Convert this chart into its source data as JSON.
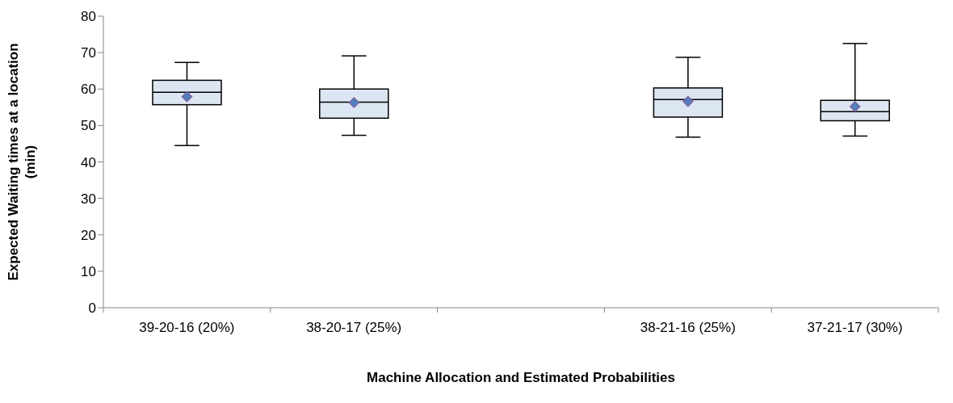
{
  "chart_data": {
    "type": "box",
    "xlabel": "Machine Allocation and Estimated Probabilities",
    "ylabel": "Expected Waiting times at a location (min)",
    "categories": [
      "39-20-16 (20%)",
      "38-20-17 (25%)",
      null,
      "38-21-16 (25%)",
      "37-21-17 (30%)"
    ],
    "color": "#dce6f2",
    "marker": "diamond",
    "boxes": [
      {
        "low": 44.5,
        "q1": 55.7,
        "median": 59.1,
        "q3": 62.4,
        "high": 67.3,
        "mean": 57.9
      },
      {
        "low": 47.3,
        "q1": 52.0,
        "median": 56.4,
        "q3": 60.0,
        "high": 69.1,
        "mean": 56.3
      },
      null,
      {
        "low": 46.8,
        "q1": 52.3,
        "median": 57.1,
        "q3": 60.3,
        "high": 68.7,
        "mean": 56.6
      },
      {
        "low": 47.1,
        "q1": 51.3,
        "median": 53.8,
        "q3": 56.9,
        "high": 72.5,
        "mean": 55.2
      }
    ],
    "ylim": [
      0,
      80
    ],
    "yticks": [
      0,
      10,
      20,
      30,
      40,
      50,
      60,
      70,
      80
    ],
    "grid": false
  }
}
